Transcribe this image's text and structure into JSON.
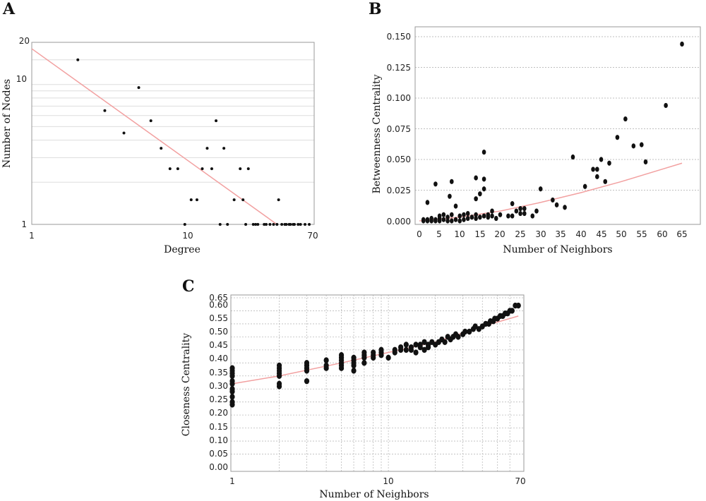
{
  "chart_data": [
    {
      "panel": "A",
      "type": "scatter",
      "xlabel": "Degree",
      "ylabel": "Number of Nodes",
      "x_scale": "log",
      "y_scale": "log",
      "xlim": [
        1,
        70
      ],
      "ylim": [
        1,
        20
      ],
      "x_ticks": [
        "1",
        "10",
        "70"
      ],
      "y_ticks": [
        "1",
        "10",
        "20"
      ],
      "grid": "horizontal",
      "colors": {
        "points": "#111111",
        "fit": "#f2a0a0",
        "grid": "#dddddd"
      },
      "points": [
        {
          "x": 2,
          "y": 15
        },
        {
          "x": 3,
          "y": 6.5
        },
        {
          "x": 4,
          "y": 4.5
        },
        {
          "x": 5,
          "y": 9.5
        },
        {
          "x": 6,
          "y": 5.5
        },
        {
          "x": 7,
          "y": 3.5
        },
        {
          "x": 8,
          "y": 2.5
        },
        {
          "x": 9,
          "y": 2.5
        },
        {
          "x": 10,
          "y": 1
        },
        {
          "x": 11,
          "y": 1.5
        },
        {
          "x": 12,
          "y": 1.5
        },
        {
          "x": 13,
          "y": 2.5
        },
        {
          "x": 14,
          "y": 3.5
        },
        {
          "x": 15,
          "y": 2.5
        },
        {
          "x": 16,
          "y": 5.5
        },
        {
          "x": 17,
          "y": 1
        },
        {
          "x": 18,
          "y": 3.5
        },
        {
          "x": 19,
          "y": 1
        },
        {
          "x": 21,
          "y": 1.5
        },
        {
          "x": 23,
          "y": 2.5
        },
        {
          "x": 24,
          "y": 1.5
        },
        {
          "x": 25,
          "y": 1
        },
        {
          "x": 26,
          "y": 2.5
        },
        {
          "x": 28,
          "y": 1
        },
        {
          "x": 29,
          "y": 1
        },
        {
          "x": 30,
          "y": 1
        },
        {
          "x": 33,
          "y": 1
        },
        {
          "x": 34,
          "y": 1
        },
        {
          "x": 36,
          "y": 1
        },
        {
          "x": 38,
          "y": 1
        },
        {
          "x": 40,
          "y": 1
        },
        {
          "x": 41,
          "y": 1.5
        },
        {
          "x": 43,
          "y": 1
        },
        {
          "x": 45,
          "y": 1
        },
        {
          "x": 46,
          "y": 1
        },
        {
          "x": 48,
          "y": 1
        },
        {
          "x": 49,
          "y": 1
        },
        {
          "x": 51,
          "y": 1
        },
        {
          "x": 52,
          "y": 1
        },
        {
          "x": 55,
          "y": 1
        },
        {
          "x": 57,
          "y": 1
        },
        {
          "x": 61,
          "y": 1
        },
        {
          "x": 65,
          "y": 1
        }
      ],
      "fit_line": [
        {
          "x": 1,
          "y": 18
        },
        {
          "x": 40,
          "y": 1
        }
      ]
    },
    {
      "panel": "B",
      "type": "scatter",
      "xlabel": "Number of Neighbors",
      "ylabel": "Betweenness Centrality",
      "x_scale": "linear",
      "y_scale": "linear",
      "xlim": [
        0,
        68
      ],
      "ylim": [
        0,
        0.155
      ],
      "x_ticks": [
        "0",
        "5",
        "10",
        "15",
        "20",
        "25",
        "30",
        "35",
        "40",
        "45",
        "50",
        "55",
        "60",
        "65"
      ],
      "y_ticks": [
        "0.000",
        "0.025",
        "0.050",
        "0.075",
        "0.100",
        "0.125",
        "0.150"
      ],
      "grid": "horizontal",
      "colors": {
        "points": "#111111",
        "fit": "#f2a0a0",
        "grid": "#aaaaaa"
      },
      "points": [
        {
          "x": 1,
          "y": 0.0
        },
        {
          "x": 1,
          "y": 0.001
        },
        {
          "x": 2,
          "y": 0.0
        },
        {
          "x": 2,
          "y": 0.001
        },
        {
          "x": 2,
          "y": 0.015
        },
        {
          "x": 3,
          "y": 0.0
        },
        {
          "x": 3,
          "y": 0.002
        },
        {
          "x": 4,
          "y": 0.0
        },
        {
          "x": 4,
          "y": 0.001
        },
        {
          "x": 4,
          "y": 0.03
        },
        {
          "x": 5,
          "y": 0.0
        },
        {
          "x": 5,
          "y": 0.002
        },
        {
          "x": 5,
          "y": 0.004
        },
        {
          "x": 6,
          "y": 0.001
        },
        {
          "x": 6,
          "y": 0.005
        },
        {
          "x": 7,
          "y": 0.0
        },
        {
          "x": 7,
          "y": 0.003
        },
        {
          "x": 7.5,
          "y": 0.02
        },
        {
          "x": 8,
          "y": 0.0
        },
        {
          "x": 8,
          "y": 0.005
        },
        {
          "x": 8,
          "y": 0.032
        },
        {
          "x": 9,
          "y": 0.001
        },
        {
          "x": 9,
          "y": 0.012
        },
        {
          "x": 10,
          "y": 0.0
        },
        {
          "x": 10,
          "y": 0.004
        },
        {
          "x": 11,
          "y": 0.001
        },
        {
          "x": 11,
          "y": 0.005
        },
        {
          "x": 12,
          "y": 0.002
        },
        {
          "x": 12,
          "y": 0.006
        },
        {
          "x": 13,
          "y": 0.003
        },
        {
          "x": 14,
          "y": 0.002
        },
        {
          "x": 14,
          "y": 0.005
        },
        {
          "x": 14,
          "y": 0.018
        },
        {
          "x": 14,
          "y": 0.035
        },
        {
          "x": 15,
          "y": 0.003
        },
        {
          "x": 15,
          "y": 0.022
        },
        {
          "x": 16,
          "y": 0.004
        },
        {
          "x": 16,
          "y": 0.026
        },
        {
          "x": 16,
          "y": 0.034
        },
        {
          "x": 16,
          "y": 0.056
        },
        {
          "x": 17,
          "y": 0.003
        },
        {
          "x": 17,
          "y": 0.005
        },
        {
          "x": 18,
          "y": 0.004
        },
        {
          "x": 18,
          "y": 0.008
        },
        {
          "x": 19,
          "y": 0.002
        },
        {
          "x": 20,
          "y": 0.005
        },
        {
          "x": 22,
          "y": 0.004
        },
        {
          "x": 23,
          "y": 0.004
        },
        {
          "x": 23,
          "y": 0.014
        },
        {
          "x": 24,
          "y": 0.008
        },
        {
          "x": 25,
          "y": 0.006
        },
        {
          "x": 25,
          "y": 0.01
        },
        {
          "x": 26,
          "y": 0.006
        },
        {
          "x": 26,
          "y": 0.01
        },
        {
          "x": 28,
          "y": 0.004
        },
        {
          "x": 29,
          "y": 0.008
        },
        {
          "x": 30,
          "y": 0.026
        },
        {
          "x": 33,
          "y": 0.017
        },
        {
          "x": 34,
          "y": 0.013
        },
        {
          "x": 36,
          "y": 0.011
        },
        {
          "x": 38,
          "y": 0.052
        },
        {
          "x": 41,
          "y": 0.028
        },
        {
          "x": 43,
          "y": 0.042
        },
        {
          "x": 44,
          "y": 0.042
        },
        {
          "x": 44,
          "y": 0.036
        },
        {
          "x": 45,
          "y": 0.05
        },
        {
          "x": 46,
          "y": 0.032
        },
        {
          "x": 47,
          "y": 0.047
        },
        {
          "x": 49,
          "y": 0.068
        },
        {
          "x": 51,
          "y": 0.083
        },
        {
          "x": 53,
          "y": 0.061
        },
        {
          "x": 55,
          "y": 0.062
        },
        {
          "x": 56,
          "y": 0.048
        },
        {
          "x": 61,
          "y": 0.094
        },
        {
          "x": 65,
          "y": 0.144
        }
      ],
      "fit_curve": [
        {
          "x": 0,
          "y": 0.0
        },
        {
          "x": 10,
          "y": 0.003
        },
        {
          "x": 20,
          "y": 0.008
        },
        {
          "x": 30,
          "y": 0.015
        },
        {
          "x": 40,
          "y": 0.023
        },
        {
          "x": 50,
          "y": 0.032
        },
        {
          "x": 60,
          "y": 0.042
        },
        {
          "x": 65,
          "y": 0.047
        }
      ]
    },
    {
      "panel": "C",
      "type": "scatter",
      "xlabel": "Number of Neighbors",
      "ylabel": "Closeness Centrality",
      "x_scale": "log",
      "y_scale": "linear",
      "xlim": [
        1,
        70
      ],
      "ylim": [
        0,
        0.65
      ],
      "x_ticks": [
        "1",
        "10",
        "70"
      ],
      "y_ticks": [
        "0.00",
        "0.05",
        "0.10",
        "0.15",
        "0.20",
        "0.25",
        "0.30",
        "0.35",
        "0.40",
        "0.45",
        "0.50",
        "0.55",
        "0.60",
        "0.65"
      ],
      "grid": "both",
      "colors": {
        "points": "#111111",
        "fit": "#f2a0a0",
        "grid": "#bbbbbb"
      },
      "points": [
        {
          "x": 1,
          "y": 0.24
        },
        {
          "x": 1,
          "y": 0.25
        },
        {
          "x": 1,
          "y": 0.27
        },
        {
          "x": 1,
          "y": 0.29
        },
        {
          "x": 1,
          "y": 0.3
        },
        {
          "x": 1,
          "y": 0.32
        },
        {
          "x": 1,
          "y": 0.33
        },
        {
          "x": 1,
          "y": 0.35
        },
        {
          "x": 1,
          "y": 0.36
        },
        {
          "x": 1,
          "y": 0.37
        },
        {
          "x": 1,
          "y": 0.38
        },
        {
          "x": 2,
          "y": 0.31
        },
        {
          "x": 2,
          "y": 0.32
        },
        {
          "x": 2,
          "y": 0.35
        },
        {
          "x": 2,
          "y": 0.36
        },
        {
          "x": 2,
          "y": 0.37
        },
        {
          "x": 2,
          "y": 0.38
        },
        {
          "x": 2,
          "y": 0.39
        },
        {
          "x": 3,
          "y": 0.33
        },
        {
          "x": 3,
          "y": 0.37
        },
        {
          "x": 3,
          "y": 0.38
        },
        {
          "x": 3,
          "y": 0.39
        },
        {
          "x": 3,
          "y": 0.4
        },
        {
          "x": 4,
          "y": 0.38
        },
        {
          "x": 4,
          "y": 0.39
        },
        {
          "x": 4,
          "y": 0.41
        },
        {
          "x": 5,
          "y": 0.38
        },
        {
          "x": 5,
          "y": 0.39
        },
        {
          "x": 5,
          "y": 0.4
        },
        {
          "x": 5,
          "y": 0.41
        },
        {
          "x": 5,
          "y": 0.42
        },
        {
          "x": 5,
          "y": 0.43
        },
        {
          "x": 6,
          "y": 0.37
        },
        {
          "x": 6,
          "y": 0.39
        },
        {
          "x": 6,
          "y": 0.4
        },
        {
          "x": 6,
          "y": 0.41
        },
        {
          "x": 6,
          "y": 0.42
        },
        {
          "x": 7,
          "y": 0.4
        },
        {
          "x": 7,
          "y": 0.42
        },
        {
          "x": 7,
          "y": 0.43
        },
        {
          "x": 7,
          "y": 0.44
        },
        {
          "x": 8,
          "y": 0.42
        },
        {
          "x": 8,
          "y": 0.43
        },
        {
          "x": 8,
          "y": 0.44
        },
        {
          "x": 9,
          "y": 0.43
        },
        {
          "x": 9,
          "y": 0.44
        },
        {
          "x": 9,
          "y": 0.45
        },
        {
          "x": 10,
          "y": 0.42
        },
        {
          "x": 11,
          "y": 0.44
        },
        {
          "x": 11,
          "y": 0.45
        },
        {
          "x": 12,
          "y": 0.46
        },
        {
          "x": 12,
          "y": 0.45
        },
        {
          "x": 13,
          "y": 0.45
        },
        {
          "x": 13,
          "y": 0.47
        },
        {
          "x": 14,
          "y": 0.45
        },
        {
          "x": 14,
          "y": 0.46
        },
        {
          "x": 15,
          "y": 0.44
        },
        {
          "x": 15,
          "y": 0.47
        },
        {
          "x": 16,
          "y": 0.46
        },
        {
          "x": 16,
          "y": 0.47
        },
        {
          "x": 17,
          "y": 0.45
        },
        {
          "x": 17,
          "y": 0.48
        },
        {
          "x": 18,
          "y": 0.46
        },
        {
          "x": 18,
          "y": 0.47
        },
        {
          "x": 19,
          "y": 0.48
        },
        {
          "x": 20,
          "y": 0.47
        },
        {
          "x": 21,
          "y": 0.48
        },
        {
          "x": 22,
          "y": 0.49
        },
        {
          "x": 23,
          "y": 0.48
        },
        {
          "x": 24,
          "y": 0.5
        },
        {
          "x": 25,
          "y": 0.49
        },
        {
          "x": 26,
          "y": 0.5
        },
        {
          "x": 27,
          "y": 0.51
        },
        {
          "x": 28,
          "y": 0.5
        },
        {
          "x": 30,
          "y": 0.51
        },
        {
          "x": 31,
          "y": 0.52
        },
        {
          "x": 33,
          "y": 0.52
        },
        {
          "x": 35,
          "y": 0.53
        },
        {
          "x": 36,
          "y": 0.54
        },
        {
          "x": 38,
          "y": 0.53
        },
        {
          "x": 40,
          "y": 0.54
        },
        {
          "x": 42,
          "y": 0.55
        },
        {
          "x": 44,
          "y": 0.55
        },
        {
          "x": 45,
          "y": 0.56
        },
        {
          "x": 47,
          "y": 0.56
        },
        {
          "x": 48,
          "y": 0.57
        },
        {
          "x": 50,
          "y": 0.57
        },
        {
          "x": 52,
          "y": 0.58
        },
        {
          "x": 54,
          "y": 0.58
        },
        {
          "x": 56,
          "y": 0.59
        },
        {
          "x": 58,
          "y": 0.59
        },
        {
          "x": 60,
          "y": 0.6
        },
        {
          "x": 62,
          "y": 0.6
        },
        {
          "x": 65,
          "y": 0.62
        },
        {
          "x": 68,
          "y": 0.62
        }
      ],
      "fit_curve": [
        {
          "x": 1,
          "y": 0.32
        },
        {
          "x": 2,
          "y": 0.35
        },
        {
          "x": 5,
          "y": 0.4
        },
        {
          "x": 10,
          "y": 0.44
        },
        {
          "x": 20,
          "y": 0.48
        },
        {
          "x": 40,
          "y": 0.54
        },
        {
          "x": 68,
          "y": 0.58
        }
      ]
    }
  ]
}
